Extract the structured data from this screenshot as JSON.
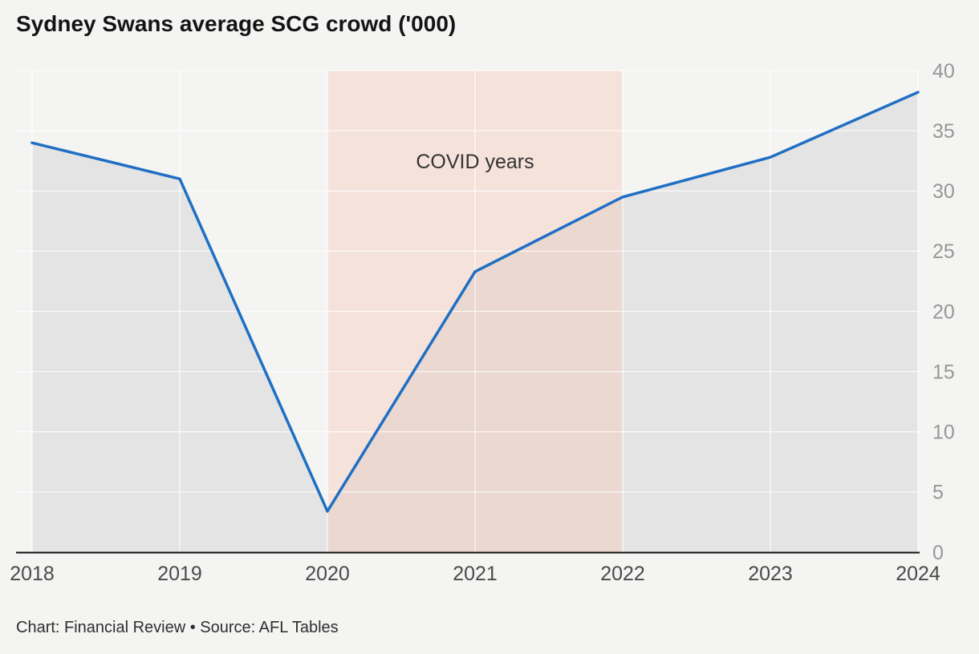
{
  "title": "Sydney Swans average SCG crowd ('000)",
  "footer": "Chart: Financial Review • Source: AFL Tables",
  "chart_data": {
    "type": "line",
    "title": "Sydney Swans average SCG crowd ('000)",
    "series_name": "Average SCG crowd ('000)",
    "x": [
      2018,
      2019,
      2020,
      2021,
      2022,
      2023,
      2024
    ],
    "values": [
      34.0,
      31.0,
      3.4,
      23.3,
      29.5,
      32.8,
      38.2
    ],
    "xticks": [
      "2018",
      "2019",
      "2020",
      "2021",
      "2022",
      "2023",
      "2024"
    ],
    "yticks": [
      0,
      5,
      10,
      15,
      20,
      25,
      30,
      35,
      40
    ],
    "ylim": [
      0,
      40
    ],
    "grid": true,
    "legend": "none",
    "y_axis_side": "right",
    "annotations": [
      {
        "text": "COVID years",
        "x_range": [
          2020,
          2022
        ]
      }
    ],
    "colors": {
      "line": "#1f6fc4",
      "area_fill": "#e4e4e4",
      "band_fill": "rgba(246,196,176,0.35)",
      "grid": "rgba(255,255,255,0.8)",
      "axis": "#111111",
      "x_tick_text": "#4a4a4a",
      "y_tick_text": "#979797",
      "annotation_text": "#333333"
    }
  }
}
